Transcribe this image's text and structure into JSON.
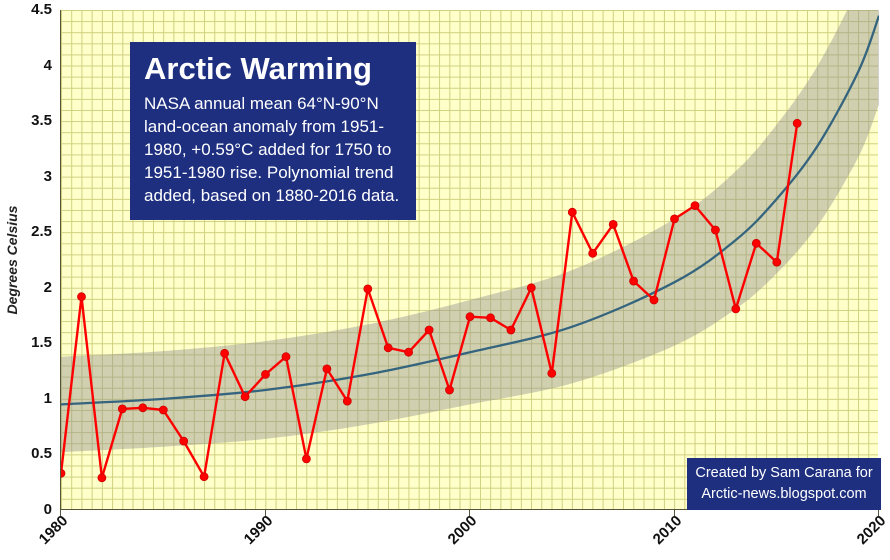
{
  "title_box": {
    "title": "Arctic Warming",
    "subtitle_lines": [
      "NASA annual mean 64°N-90°N",
      "land-ocean anomaly from 1951-",
      "1980, +0.59°C added for 1750 to",
      "1951-1980 rise. Polynomial trend",
      "added, based on 1880-2016 data."
    ],
    "bg": "#1e2f80",
    "text_color": "#ffffff"
  },
  "credit_box": {
    "lines": [
      "Created by Sam Carana for",
      "Arctic-news.blogspot.com"
    ],
    "bg": "#1e2f80",
    "text_color": "#ffffff"
  },
  "colors": {
    "plot_background": "#ffffc9",
    "gridline": "#cfcf7f",
    "anomaly_series": "#ff0000",
    "trend_line": "#35647e",
    "confidence_band": "#8f8f8f",
    "axis_text": "#111111"
  },
  "chart_data": {
    "type": "line",
    "title": "Arctic Warming",
    "xlabel": "",
    "ylabel": "Degrees Celsius",
    "xlim": [
      1980,
      2020
    ],
    "ylim": [
      0,
      4.5
    ],
    "x_ticks": [
      1980,
      1990,
      2000,
      2010,
      2020
    ],
    "y_ticks": [
      0,
      0.5,
      1,
      1.5,
      2,
      2.5,
      3,
      3.5,
      4,
      4.5
    ],
    "grid": true,
    "legend": "none",
    "series": [
      {
        "name": "NASA annual mean 64°N-90°N land-ocean anomaly +0.59°C",
        "style": "line+markers",
        "color": "#ff0000",
        "x": [
          1980,
          1981,
          1982,
          1983,
          1984,
          1985,
          1986,
          1987,
          1988,
          1989,
          1990,
          1991,
          1992,
          1993,
          1994,
          1995,
          1996,
          1997,
          1998,
          1999,
          2000,
          2001,
          2002,
          2003,
          2004,
          2005,
          2006,
          2007,
          2008,
          2009,
          2010,
          2011,
          2012,
          2013,
          2014,
          2015,
          2016
        ],
        "y": [
          0.33,
          1.92,
          0.29,
          0.91,
          0.92,
          0.9,
          0.62,
          0.3,
          1.41,
          1.02,
          1.22,
          1.38,
          0.46,
          1.27,
          0.98,
          1.99,
          1.46,
          1.42,
          1.62,
          1.08,
          1.74,
          1.73,
          1.62,
          2.0,
          1.23,
          2.68,
          2.31,
          2.57,
          2.06,
          1.89,
          2.62,
          2.74,
          2.52,
          1.81,
          2.4,
          2.23,
          3.48
        ]
      },
      {
        "name": "Polynomial trend based on 1880-2016 data",
        "style": "smooth-line",
        "color": "#35647e",
        "x": [
          1980,
          1985,
          1990,
          1995,
          2000,
          2005,
          2010,
          2013,
          2015,
          2017,
          2019,
          2020
        ],
        "y": [
          0.95,
          1.0,
          1.08,
          1.22,
          1.42,
          1.65,
          2.05,
          2.43,
          2.8,
          3.28,
          3.95,
          4.45
        ]
      }
    ],
    "band": {
      "name": "trend confidence band",
      "color": "#8f8f8f",
      "opacity": 0.42,
      "x": [
        1980,
        1985,
        1990,
        1995,
        2000,
        2005,
        2010,
        2013,
        2015,
        2017,
        2019,
        2020
      ],
      "upper": [
        1.38,
        1.43,
        1.52,
        1.67,
        1.89,
        2.16,
        2.62,
        3.05,
        3.47,
        4.0,
        4.72,
        5.25
      ],
      "lower": [
        0.52,
        0.57,
        0.64,
        0.77,
        0.95,
        1.14,
        1.48,
        1.81,
        2.13,
        2.56,
        3.18,
        3.65
      ]
    }
  }
}
